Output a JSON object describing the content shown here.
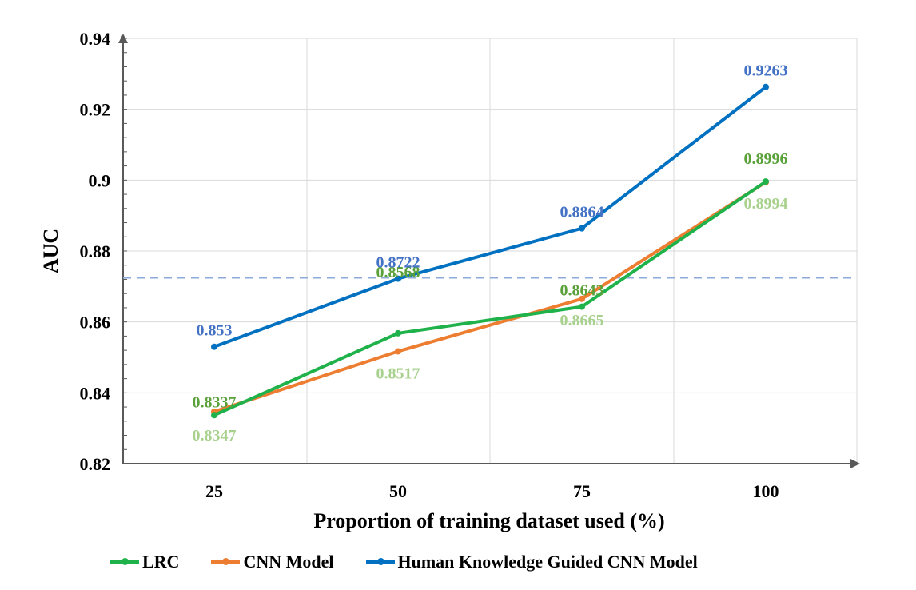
{
  "chart_data": {
    "type": "line",
    "xlabel": "Proportion of training dataset used (%)",
    "ylabel": "AUC",
    "categories": [
      "25",
      "50",
      "75",
      "100"
    ],
    "ylim": [
      0.82,
      0.94
    ],
    "yticks": [
      "0.82",
      "0.84",
      "0.86",
      "0.88",
      "0.9",
      "0.92",
      "0.94"
    ],
    "reference_line": 0.8725,
    "series": [
      {
        "name": "LRC",
        "color": "#1fb24a",
        "values": [
          0.8337,
          0.8568,
          0.8643,
          0.8996
        ],
        "labels": [
          "0.8337",
          "0.8568",
          "0.8643",
          "0.8996"
        ],
        "label_color": "#5aa13a"
      },
      {
        "name": "CNN Model",
        "color": "#ed7d31",
        "values": [
          0.8347,
          0.8517,
          0.8665,
          0.8994
        ],
        "labels": [
          "0.8347",
          "0.8517",
          "0.8665",
          "0.8994"
        ],
        "label_color": "#a9d18e"
      },
      {
        "name": "Human Knowledge Guided CNN Model",
        "color": "#0070c0",
        "values": [
          0.853,
          0.8722,
          0.8864,
          0.9263
        ],
        "labels": [
          "0.853",
          "0.8722",
          "0.8864",
          "0.9263"
        ],
        "label_color": "#4472c4"
      }
    ]
  }
}
